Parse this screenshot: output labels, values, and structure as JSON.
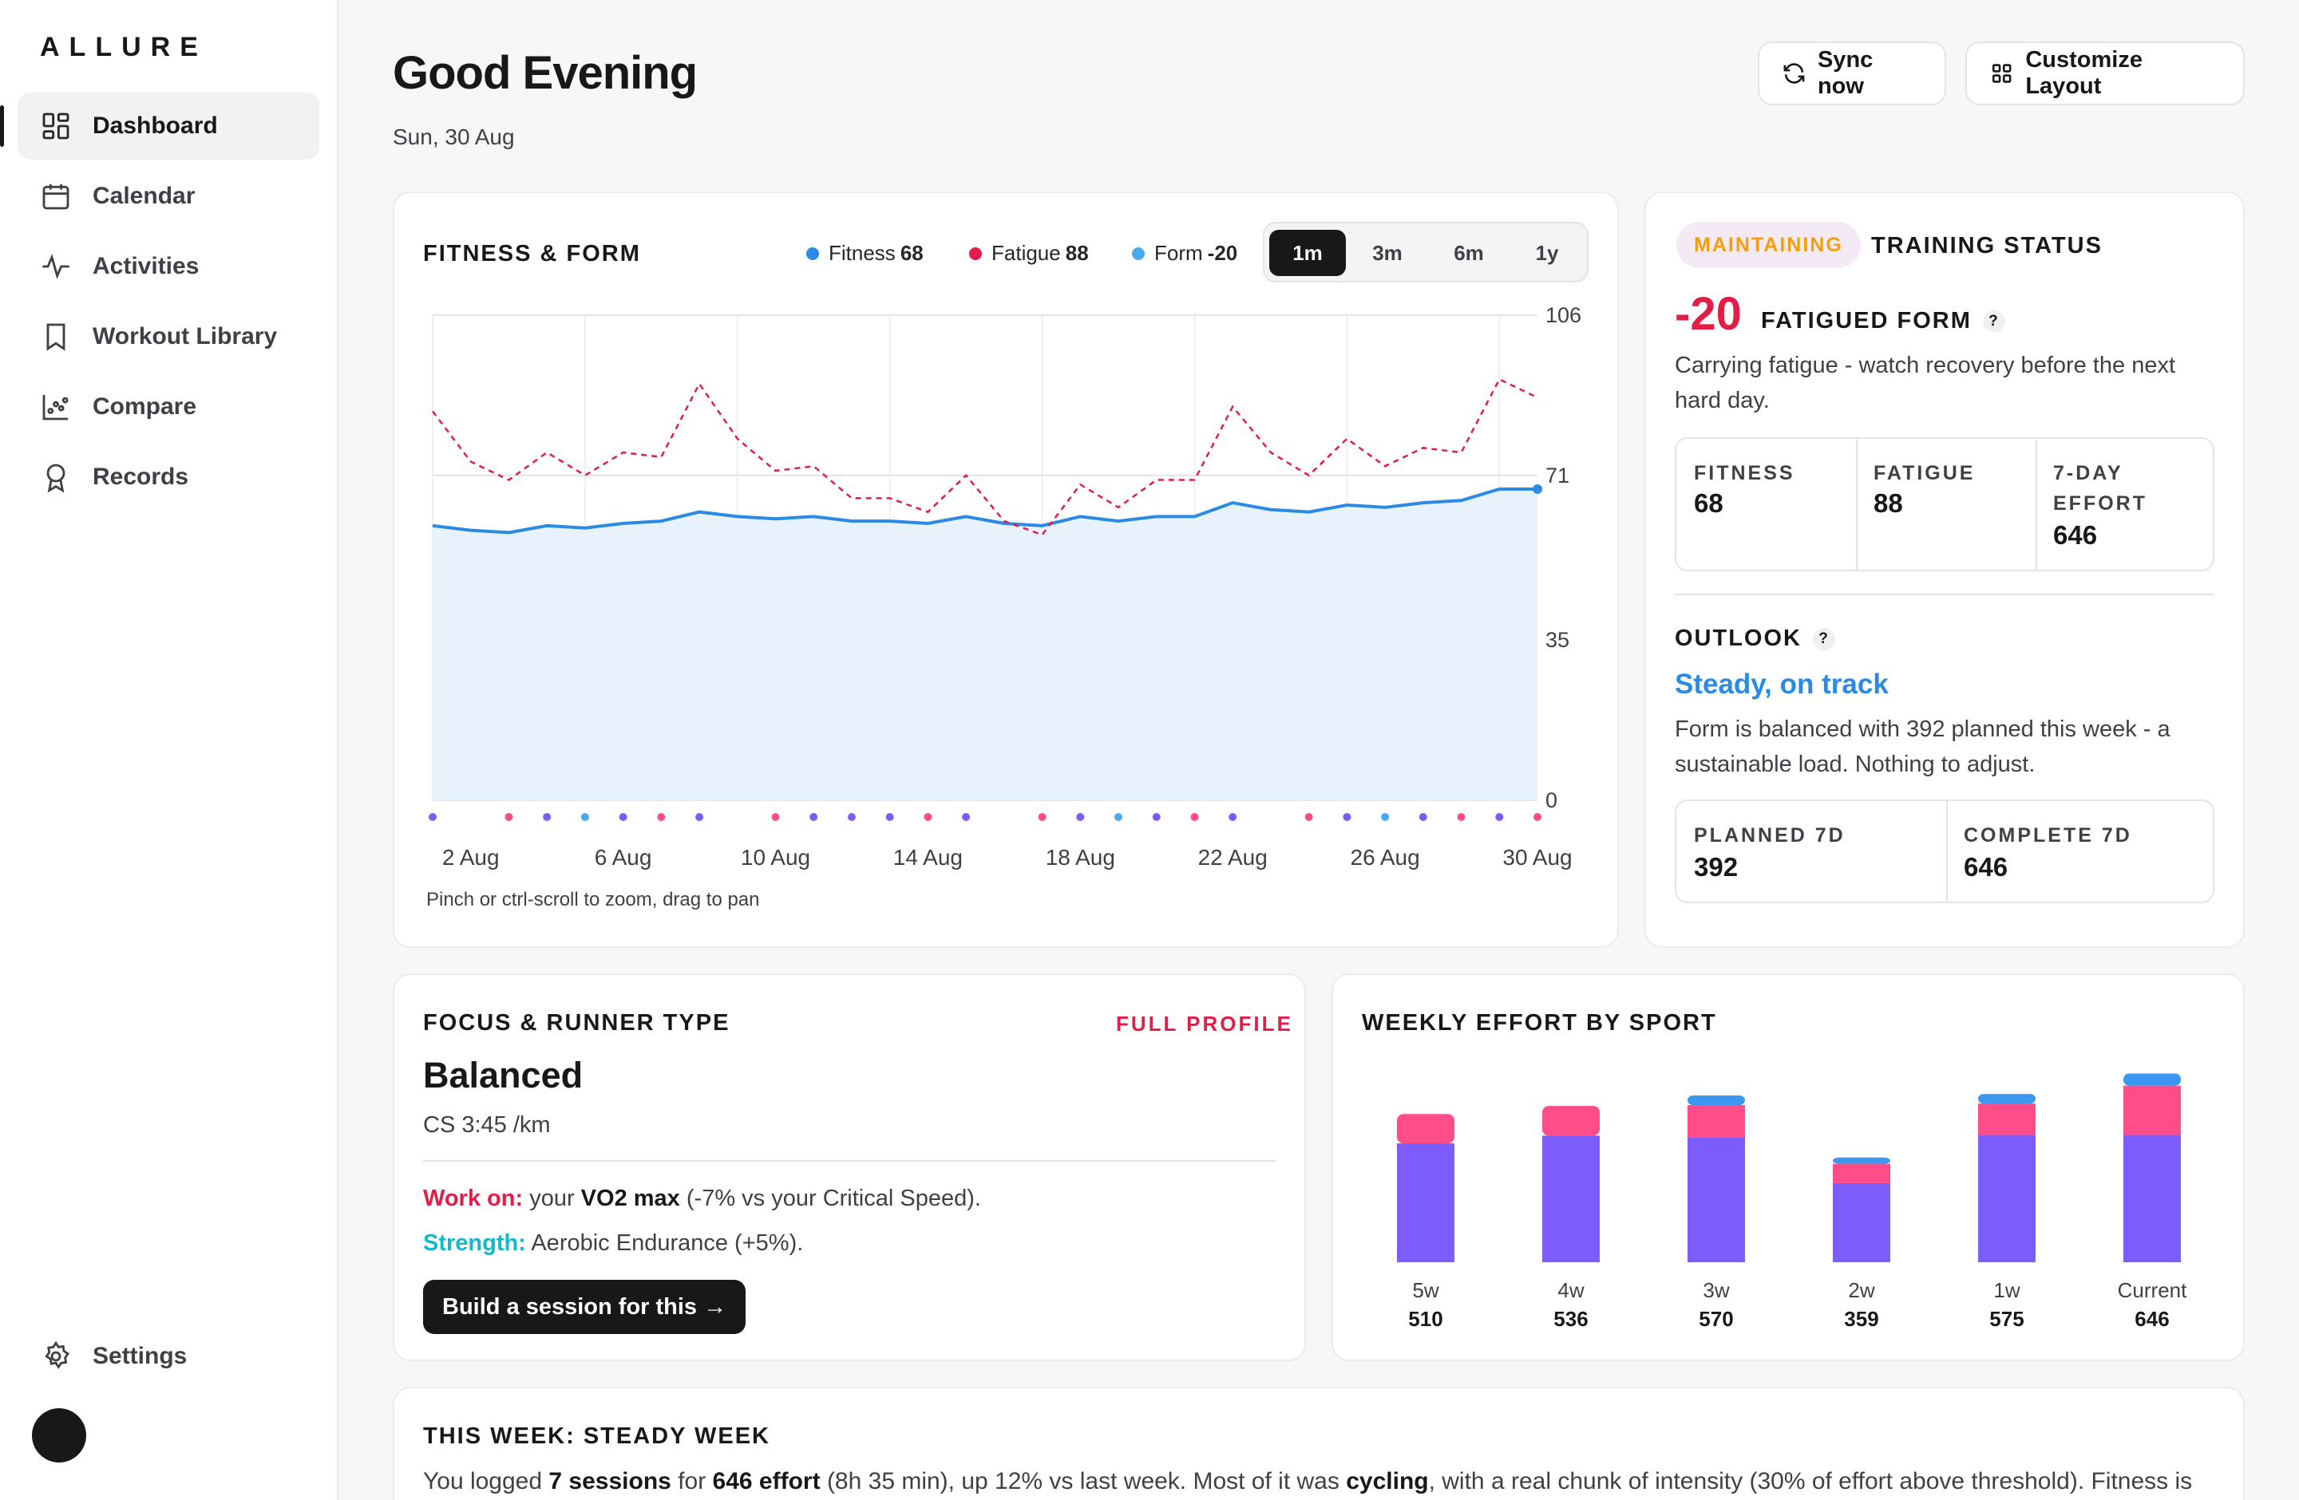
{
  "app": {
    "logo": "ALLURE"
  },
  "sidebar": {
    "items": [
      {
        "label": "Dashboard",
        "icon": "dashboard-icon",
        "active": true
      },
      {
        "label": "Calendar",
        "icon": "calendar-icon"
      },
      {
        "label": "Activities",
        "icon": "activity-icon"
      },
      {
        "label": "Workout Library",
        "icon": "bookmark-icon"
      },
      {
        "label": "Compare",
        "icon": "scatter-icon"
      },
      {
        "label": "Records",
        "icon": "award-icon"
      }
    ],
    "settings_label": "Settings"
  },
  "header": {
    "greeting": "Good Evening",
    "date": "Sun, 30 Aug",
    "sync_label": "Sync now",
    "customize_label": "Customize Layout"
  },
  "fitness_card": {
    "title": "FITNESS & FORM",
    "legend": [
      {
        "name": "Fitness",
        "value": "68",
        "color": "#2b8ae4"
      },
      {
        "name": "Fatigue",
        "value": "88",
        "color": "#e11d48"
      },
      {
        "name": "Form",
        "value": "-20",
        "color": "#4aa8f0"
      }
    ],
    "ranges": [
      "1m",
      "3m",
      "6m",
      "1y"
    ],
    "active_range": "1m",
    "hint": "Pinch or ctrl-scroll to zoom, drag to pan"
  },
  "chart_data": {
    "type": "line",
    "title": "FITNESS & FORM",
    "x_tick_labels": [
      "2 Aug",
      "6 Aug",
      "10 Aug",
      "14 Aug",
      "18 Aug",
      "22 Aug",
      "26 Aug",
      "30 Aug"
    ],
    "y_tick_labels": [
      "106",
      "71",
      "35",
      "0"
    ],
    "ylim": [
      0,
      106
    ],
    "x_days": [
      1,
      2,
      3,
      4,
      5,
      6,
      7,
      8,
      9,
      10,
      11,
      12,
      13,
      14,
      15,
      16,
      17,
      18,
      19,
      20,
      21,
      22,
      23,
      24,
      25,
      26,
      27,
      28,
      29,
      30
    ],
    "series": [
      {
        "name": "Fitness",
        "style": "solid-area",
        "color": "#2b8ae4",
        "values": [
          60,
          59,
          58.5,
          60,
          59.5,
          60.5,
          61,
          63,
          62,
          61.5,
          62,
          61,
          61,
          60.5,
          62,
          60.5,
          60,
          62,
          61,
          62,
          62,
          65,
          63.5,
          63,
          64.5,
          64,
          65,
          65.5,
          68,
          68
        ]
      },
      {
        "name": "Fatigue",
        "style": "dashed",
        "color": "#e11d48",
        "values": [
          85,
          74,
          70,
          76,
          71,
          76,
          75,
          91,
          79,
          72,
          73,
          66,
          66,
          63,
          71,
          61,
          58,
          69,
          64,
          70,
          70,
          86,
          76,
          71,
          79,
          73,
          77,
          76,
          92,
          88
        ]
      }
    ],
    "activity_dot_colors": [
      "#7c5cfa",
      "#ff4d8a",
      "#7c5cfa",
      "#4aa8f0",
      "#7c5cfa",
      "#ff4d8a",
      "#7c5cfa",
      "#ff4d8a",
      "#7c5cfa",
      "#7c5cfa",
      "#7c5cfa",
      "#ff4d8a",
      "#7c5cfa",
      "#ff4d8a",
      "#7c5cfa",
      "#4aa8f0",
      "#7c5cfa",
      "#ff4d8a",
      "#7c5cfa",
      "#ff4d8a",
      "#7c5cfa",
      "#4aa8f0",
      "#7c5cfa",
      "#ff4d8a",
      "#7c5cfa",
      "#ff4d8a"
    ],
    "grid": true
  },
  "training_status": {
    "badge": "MAINTAINING",
    "title": "TRAINING STATUS",
    "form_value": "-20",
    "form_label": "FATIGUED FORM",
    "description_line1": "Carrying fatigue - watch recovery before the next",
    "description_line2": "hard day.",
    "stats": [
      {
        "label": "FITNESS",
        "value": "68"
      },
      {
        "label": "FATIGUE",
        "value": "88"
      },
      {
        "label_line1": "7-DAY",
        "label_line2": "EFFORT",
        "value": "646"
      }
    ],
    "outlook_title": "OUTLOOK",
    "outlook_status": "Steady, on track",
    "outlook_line1": "Form is balanced with 392 planned this week - a",
    "outlook_line2": "sustainable load. Nothing to adjust.",
    "planned": {
      "label": "PLANNED 7D",
      "value": "392"
    },
    "complete": {
      "label": "COMPLETE 7D",
      "value": "646"
    }
  },
  "focus_card": {
    "title": "FOCUS & RUNNER TYPE",
    "link": "FULL PROFILE",
    "type": "Balanced",
    "cs": "CS 3:45 /km",
    "work_on_label": "Work on:",
    "work_on_pre": "your",
    "work_on_bold": "VO2 max",
    "work_on_post": "(-7% vs your Critical Speed).",
    "strength_label": "Strength:",
    "strength_text": "Aerobic Endurance (+5%).",
    "button": "Build a session for this →"
  },
  "weekly_effort": {
    "title": "WEEKLY EFFORT BY SPORT",
    "colors": {
      "purple": "#7c5cfa",
      "pink": "#ff4d8a",
      "blue": "#3b97f0"
    },
    "bars": [
      {
        "label": "5w",
        "total": "510",
        "total_value": 510,
        "purple": 385,
        "pink": 95,
        "blue": 0
      },
      {
        "label": "4w",
        "total": "536",
        "total_value": 536,
        "purple": 410,
        "pink": 96,
        "blue": 0
      },
      {
        "label": "3w",
        "total": "570",
        "total_value": 570,
        "purple": 405,
        "pink": 104,
        "blue": 31
      },
      {
        "label": "2w",
        "total": "359",
        "total_value": 359,
        "purple": 256,
        "pink": 63,
        "blue": 20
      },
      {
        "label": "1w",
        "total": "575",
        "total_value": 575,
        "purple": 412,
        "pink": 102,
        "blue": 31
      },
      {
        "label": "Current",
        "total": "646",
        "total_value": 646,
        "purple": 412,
        "pink": 160,
        "blue": 39
      }
    ]
  },
  "this_week": {
    "title": "THIS WEEK: STEADY WEEK",
    "t1": "You logged",
    "b1": "7 sessions",
    "t2": "for",
    "b2": "646 effort",
    "t3": "(8h 35 min), up 12% vs last week. Most of it was",
    "b3": "cycling",
    "t4": ", with a real chunk of intensity (30% of effort above threshold). Fitness is"
  }
}
